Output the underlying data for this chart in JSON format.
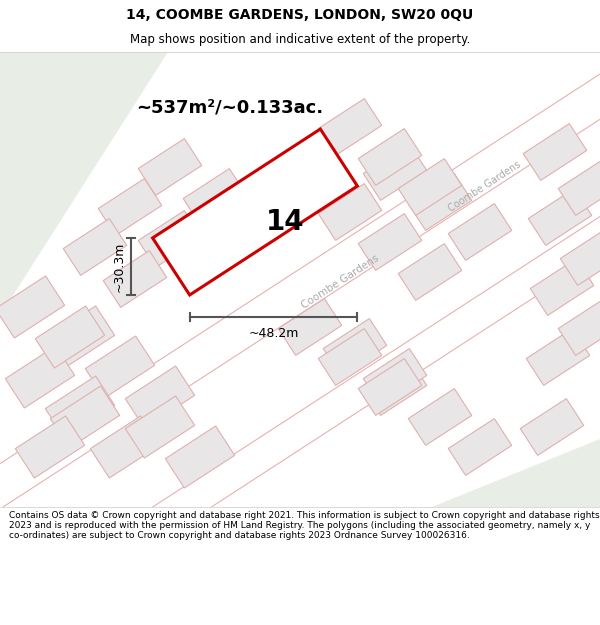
{
  "title": "14, COOMBE GARDENS, LONDON, SW20 0QU",
  "subtitle": "Map shows position and indicative extent of the property.",
  "footer": "Contains OS data © Crown copyright and database right 2021. This information is subject to Crown copyright and database rights 2023 and is reproduced with the permission of HM Land Registry. The polygons (including the associated geometry, namely x, y co-ordinates) are subject to Crown copyright and database rights 2023 Ordnance Survey 100026316.",
  "area_label": "~537m²/~0.133ac.",
  "width_label": "~48.2m",
  "height_label": "~30.3m",
  "plot_number": "14",
  "map_bg": "#f7f5f5",
  "plot_outline_color": "#cc0000",
  "road_fill": "#ffffff",
  "plot_fill": "#e8e6e6",
  "plot_outline": "#e0b0b0",
  "green_color": "#e8ede5",
  "road_line_color": "#e8b0b0",
  "dim_line_color": "#555555",
  "road_text_color": "#aaaaaa",
  "title_fontsize": 10,
  "subtitle_fontsize": 8.5,
  "footer_fontsize": 6.5
}
